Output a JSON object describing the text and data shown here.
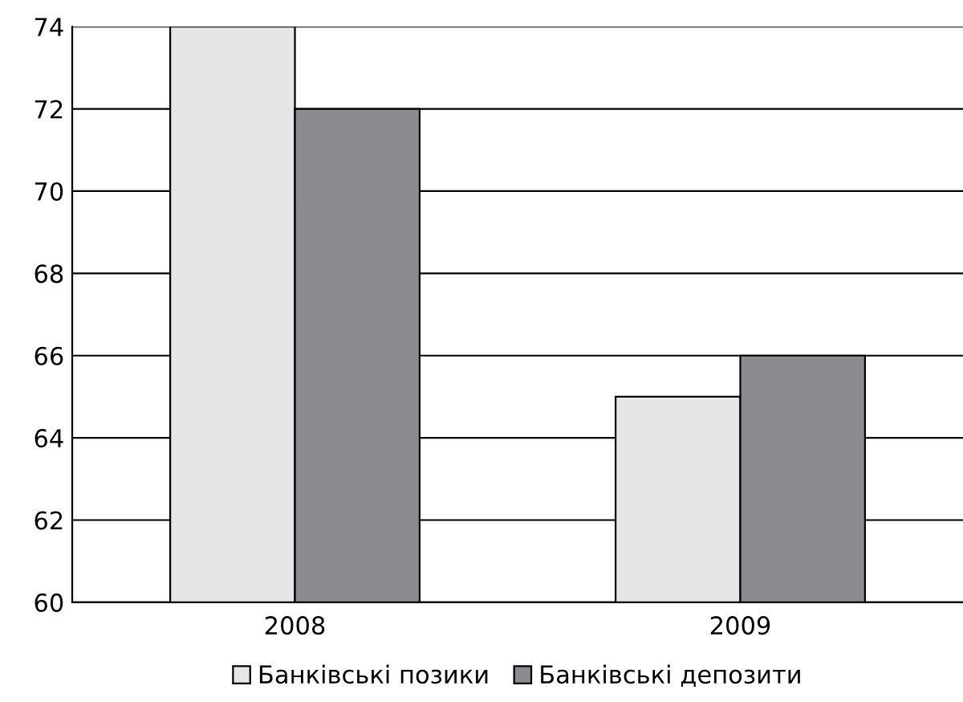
{
  "chart_data": {
    "type": "bar",
    "categories": [
      "2008",
      "2009"
    ],
    "series": [
      {
        "name": "Банківські позики",
        "color": "#e6e6e8",
        "values": [
          74,
          65
        ]
      },
      {
        "name": "Банківські депозити",
        "color": "#8c8c90",
        "values": [
          72,
          66
        ]
      }
    ],
    "ylim": [
      60,
      74
    ],
    "yticks": [
      60,
      62,
      64,
      66,
      68,
      70,
      72,
      74
    ],
    "grid": "y",
    "legend": "bottom"
  }
}
